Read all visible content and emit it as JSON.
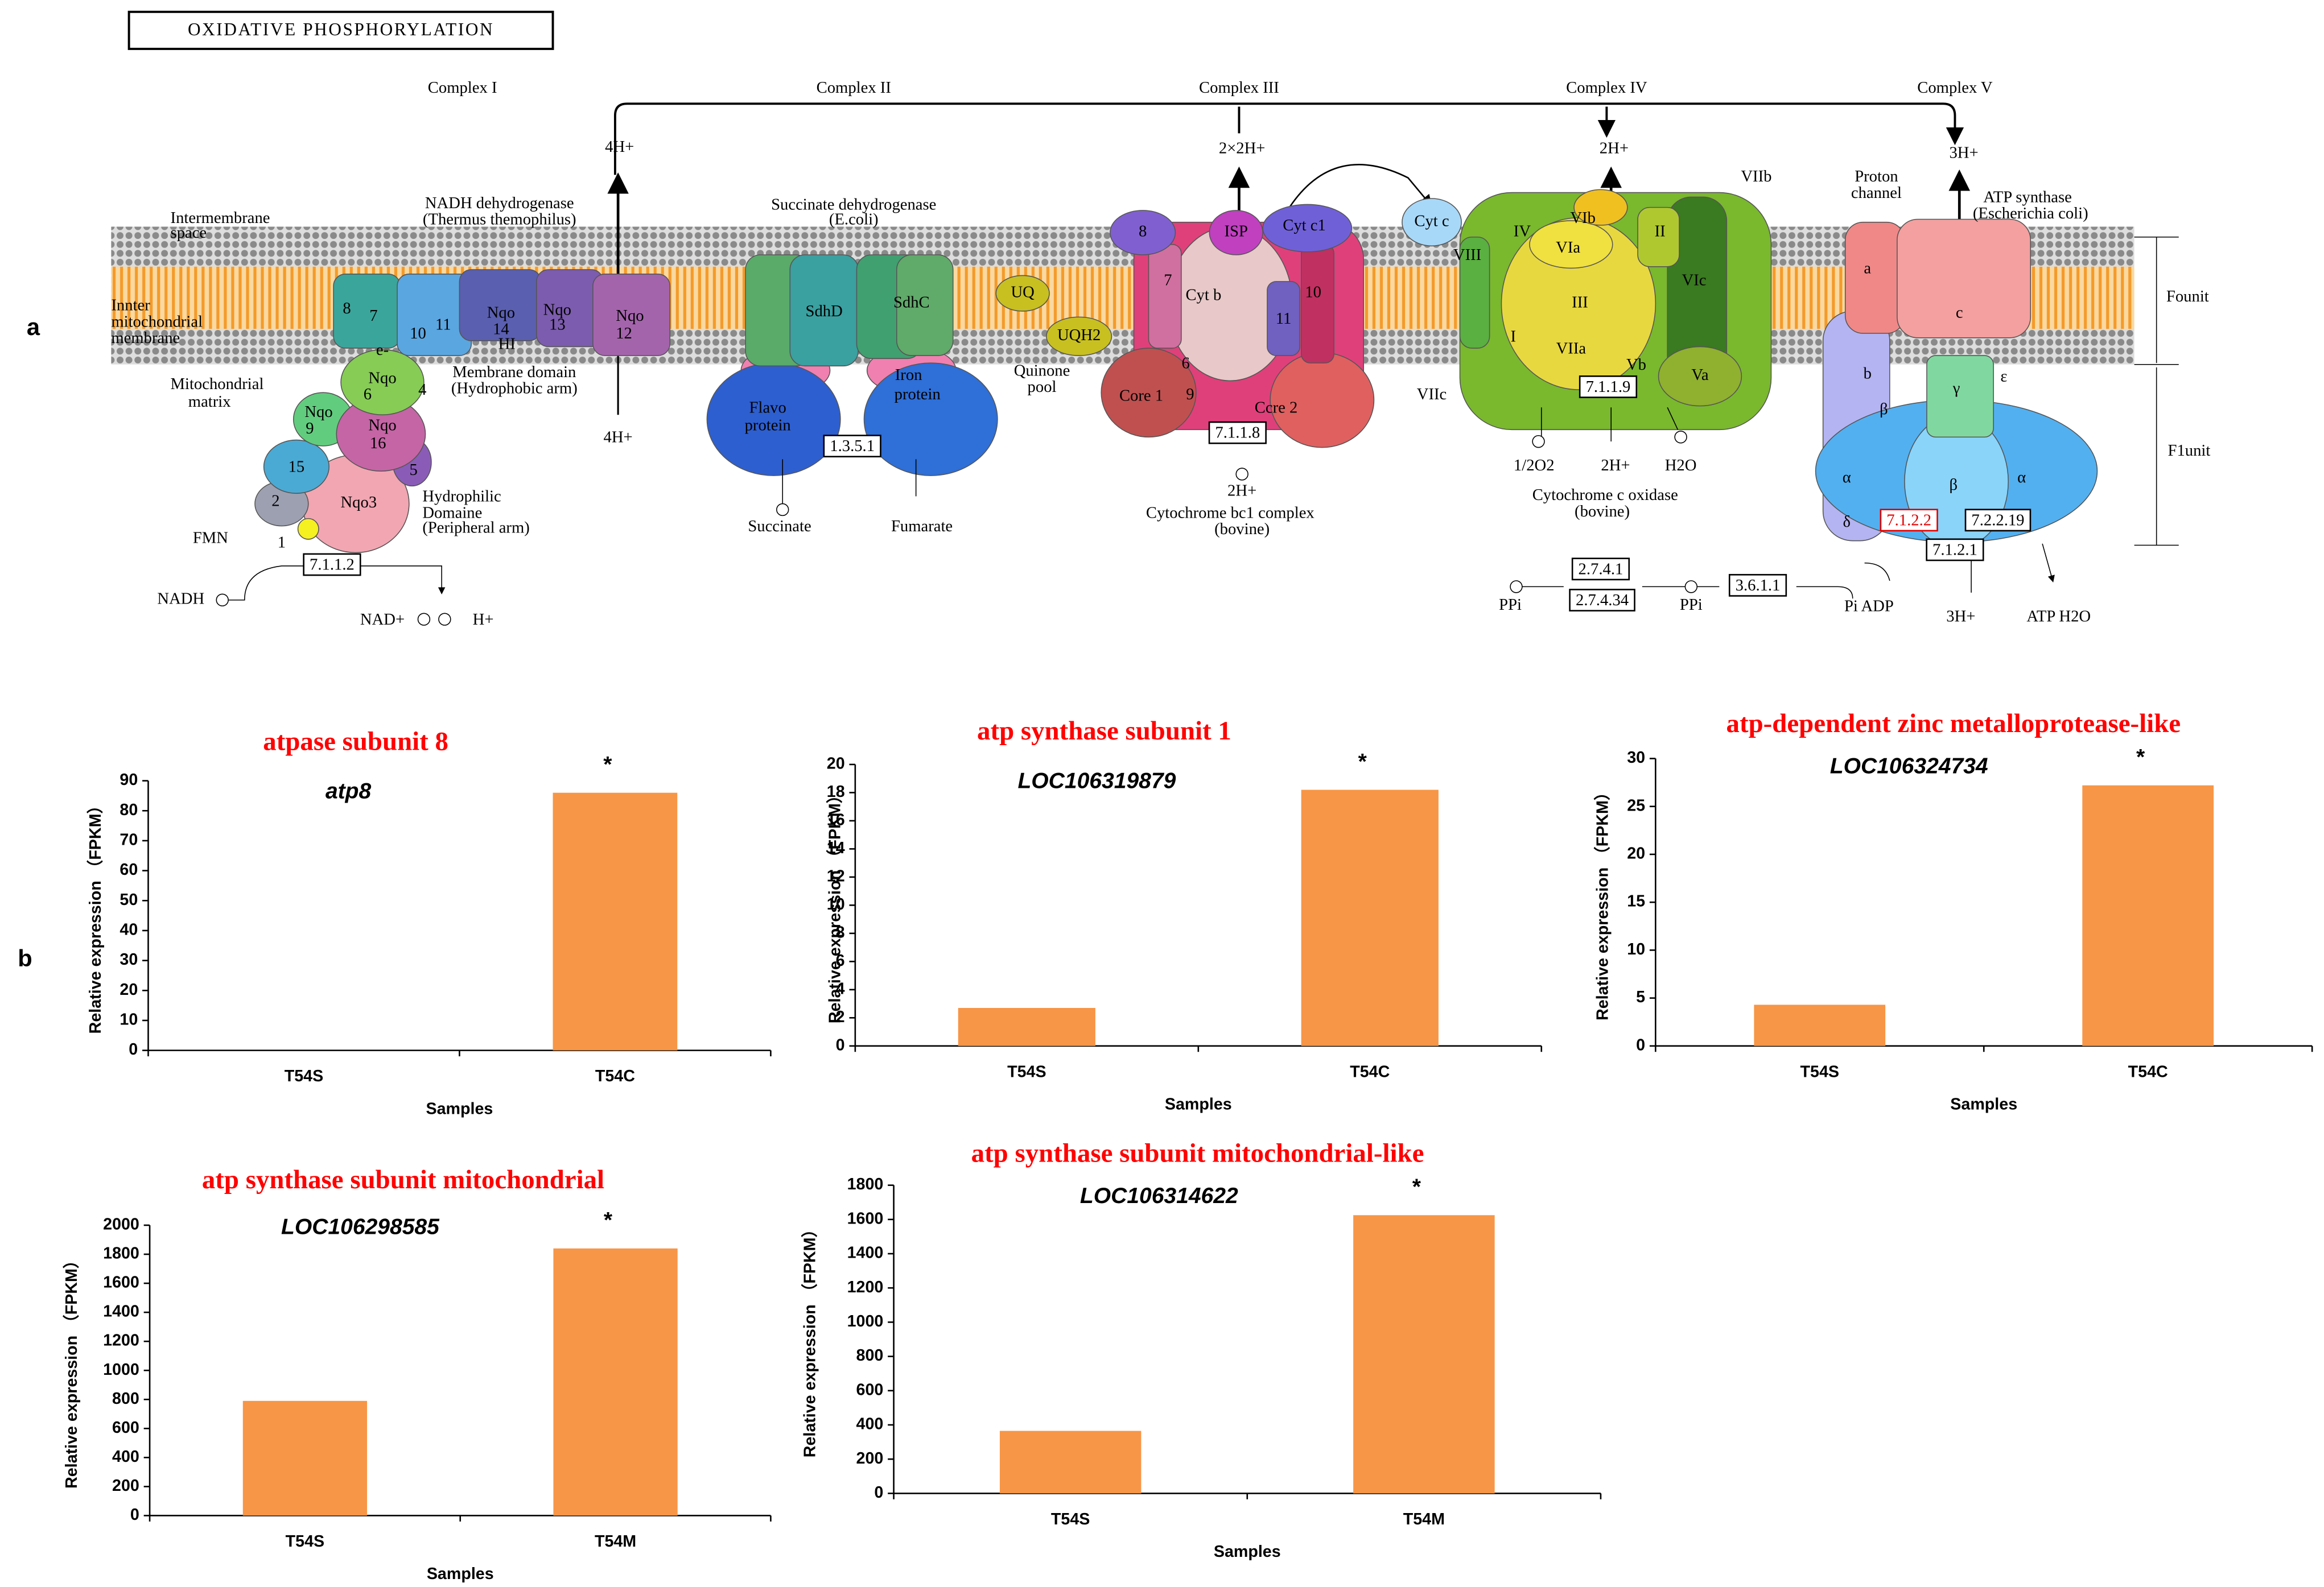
{
  "figure": {
    "panel_a": "a",
    "panel_b": "b"
  },
  "pathway": {
    "title": "OXIDATIVE PHOSPHORYLATION",
    "labels": [
      "Complex I",
      "Complex II",
      "Complex III",
      "Complex IV",
      "Complex V",
      "4H+",
      "2×2H+",
      "2H+",
      "3H+",
      "Intermembrane",
      "space",
      "Innter",
      "mitochondrial",
      "membrane",
      "Mitochondrial",
      "matrix",
      "NADH dehydrogenase",
      "(Thermus themophilus)",
      "Membrane domain",
      "(Hydrophobic arm)",
      "Hydrophilic",
      "Domaine",
      "(Peripheral arm)",
      "FMN",
      "NADH",
      "7.1.1.2",
      "NAD+",
      "H+",
      "4H+",
      "Succinate dehydrogenase",
      "(E.coli)",
      "SdhD",
      "SdhC",
      "Flavo",
      "protein",
      "Iron",
      "protein",
      "UQ",
      "UQH2",
      "Quinone",
      "pool",
      "1.3.5.1",
      "Succinate",
      "Fumarate",
      "8",
      "ISP",
      "Cyt c1",
      "7",
      "Cyt b",
      "10",
      "11",
      "6",
      "9",
      "Core 1",
      "Ccre 2",
      "7.1.1.8",
      "2H+",
      "Cytochrome bc1 complex",
      "(bovine)",
      "Cyt c",
      "VIIb",
      "VIb",
      "II",
      "IV",
      "VIII",
      "VIa",
      "III",
      "VIc",
      "I",
      "VIIa",
      "Vb",
      "Va",
      "VIIc",
      "7.1.1.9",
      "1/2O2",
      "2H+",
      "H2O",
      "Cytochrome c oxidase",
      "(bovine)",
      "Proton",
      "channel",
      "ATP synthase",
      "(Escherichia coli)",
      "a",
      "c",
      "b",
      "γ",
      "ε",
      "β",
      "α",
      "β",
      "α",
      "δ",
      "7.1.2.2",
      "7.2.2.19",
      "7.1.2.1",
      "3H+",
      "ATP H2O",
      "Pi ADP",
      "PPi",
      "2.7.4.1",
      "2.7.4.34",
      "PPi",
      "3.6.1.1",
      "Founit",
      "F1unit",
      "8",
      "7",
      "10",
      "11",
      "Nqo",
      "14",
      "HI",
      "Nqo",
      "13",
      "Nqo",
      "12",
      "6",
      "Nqo",
      "4",
      "Nqo",
      "9",
      "Nqo",
      "16",
      "5",
      "15",
      "2",
      "Nqo3",
      "1",
      "e-"
    ]
  },
  "chart_data": [
    {
      "type": "bar",
      "title": "atpase subunit 8",
      "subtitle": "atp8",
      "annotation": "*",
      "categories": [
        "T54S",
        "T54C"
      ],
      "values": [
        0,
        86
      ],
      "color": "#f79646",
      "ylim": [
        0,
        90
      ],
      "yticks": [
        0,
        10,
        20,
        30,
        40,
        50,
        60,
        70,
        80,
        90
      ],
      "ylabel": "Relative expression （FPKM）",
      "xlabel": "Samples"
    },
    {
      "type": "bar",
      "title": "atp synthase subunit 1",
      "subtitle": "LOC106319879",
      "annotation": "*",
      "categories": [
        "T54S",
        "T54C"
      ],
      "values": [
        2.7,
        18.2
      ],
      "color": "#f79646",
      "ylim": [
        0,
        20
      ],
      "yticks": [
        0,
        2,
        4,
        6,
        8,
        10,
        12,
        14,
        16,
        18,
        20
      ],
      "ylabel": "Relative expression （FPKM）",
      "xlabel": "Samples"
    },
    {
      "type": "bar",
      "title": "atp-dependent zinc metalloprotease-like",
      "subtitle": "LOC106324734",
      "annotation": "*",
      "categories": [
        "T54S",
        "T54C"
      ],
      "values": [
        4.3,
        27.2
      ],
      "color": "#f79646",
      "ylim": [
        0,
        30
      ],
      "yticks": [
        0,
        5,
        10,
        15,
        20,
        25,
        30
      ],
      "ylabel": "Relative expression （FPKM）",
      "xlabel": "Samples"
    },
    {
      "type": "bar",
      "title": "atp synthase subunit mitochondrial",
      "subtitle": "LOC106298585",
      "annotation": "*",
      "categories": [
        "T54S",
        "T54M"
      ],
      "values": [
        790,
        1840
      ],
      "color": "#f79646",
      "ylim": [
        0,
        2000
      ],
      "yticks": [
        0,
        200,
        400,
        600,
        800,
        1000,
        1200,
        1400,
        1600,
        1800,
        2000
      ],
      "ylabel": "Relative expression （FPKM）",
      "xlabel": "Samples"
    },
    {
      "type": "bar",
      "title": "atp synthase subunit mitochondrial-like",
      "subtitle": "LOC106314622",
      "annotation": "*",
      "categories": [
        "T54S",
        "T54M"
      ],
      "values": [
        365,
        1625
      ],
      "color": "#f79646",
      "ylim": [
        0,
        1800
      ],
      "yticks": [
        0,
        200,
        400,
        600,
        800,
        1000,
        1200,
        1400,
        1600,
        1800
      ],
      "ylabel": "Relative expression （FPKM）",
      "xlabel": "Samples"
    }
  ]
}
